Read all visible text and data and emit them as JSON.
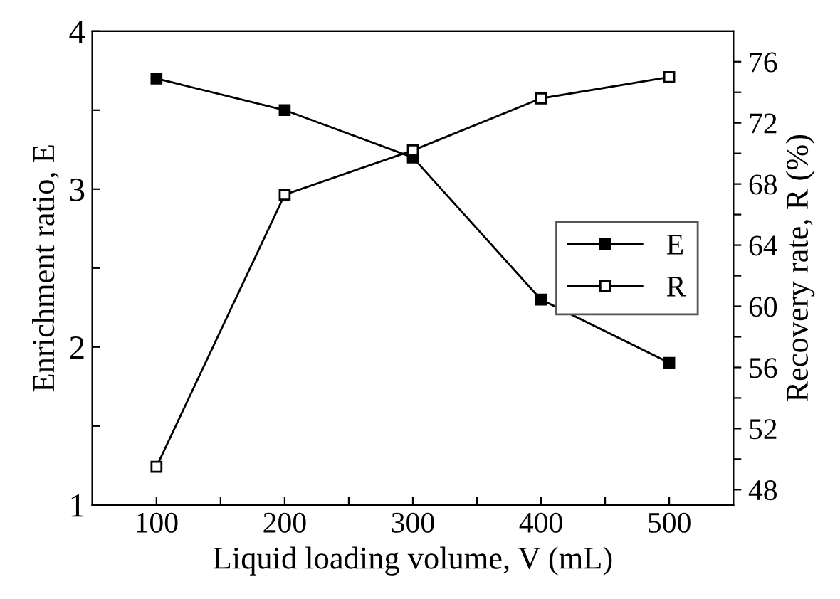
{
  "chart_data": {
    "type": "line",
    "xlabel": "Liquid loading volume, V (mL)",
    "ylabel": "Enrichment ratio, E",
    "y2label": "Recovery rate, R (%)",
    "x": [
      100,
      200,
      300,
      400,
      500
    ],
    "series": [
      {
        "name": "E",
        "color": "#000000",
        "marker": "square",
        "values": [
          3.7,
          3.5,
          3.2,
          2.3,
          1.9
        ]
      },
      {
        "name": "R",
        "color": "#000000",
        "marker": "square",
        "axis": "y2",
        "values": [
          49.5,
          67.3,
          70.2,
          73.6,
          75.0
        ]
      }
    ],
    "xlim": [
      50,
      550
    ],
    "xticks": [
      100,
      {
        "value": 150,
        "label": null
      },
      200,
      {
        "value": 250,
        "label": null
      },
      300,
      {
        "value": 350,
        "label": null
      },
      400,
      {
        "value": 450,
        "label": null
      },
      500
    ],
    "ylim": [
      1,
      4
    ],
    "yticks": [
      1,
      {
        "value": 1.5,
        "label": null
      },
      2,
      {
        "value": 2.5,
        "label": null
      },
      3,
      {
        "value": 3.5,
        "label": null
      },
      4
    ],
    "y2lim": [
      47,
      78
    ],
    "y2ticks": [
      48,
      {
        "value": 50,
        "label": null
      },
      52,
      {
        "value": 54,
        "label": null
      },
      56,
      {
        "value": 58,
        "label": null
      },
      60,
      {
        "value": 62,
        "label": null
      },
      64,
      {
        "value": 66,
        "label": null
      },
      68,
      {
        "value": 70,
        "label": null
      },
      72,
      {
        "value": 74,
        "label": null
      },
      76
    ],
    "legend": "right",
    "grid": false,
    "line_style": "solid"
  }
}
